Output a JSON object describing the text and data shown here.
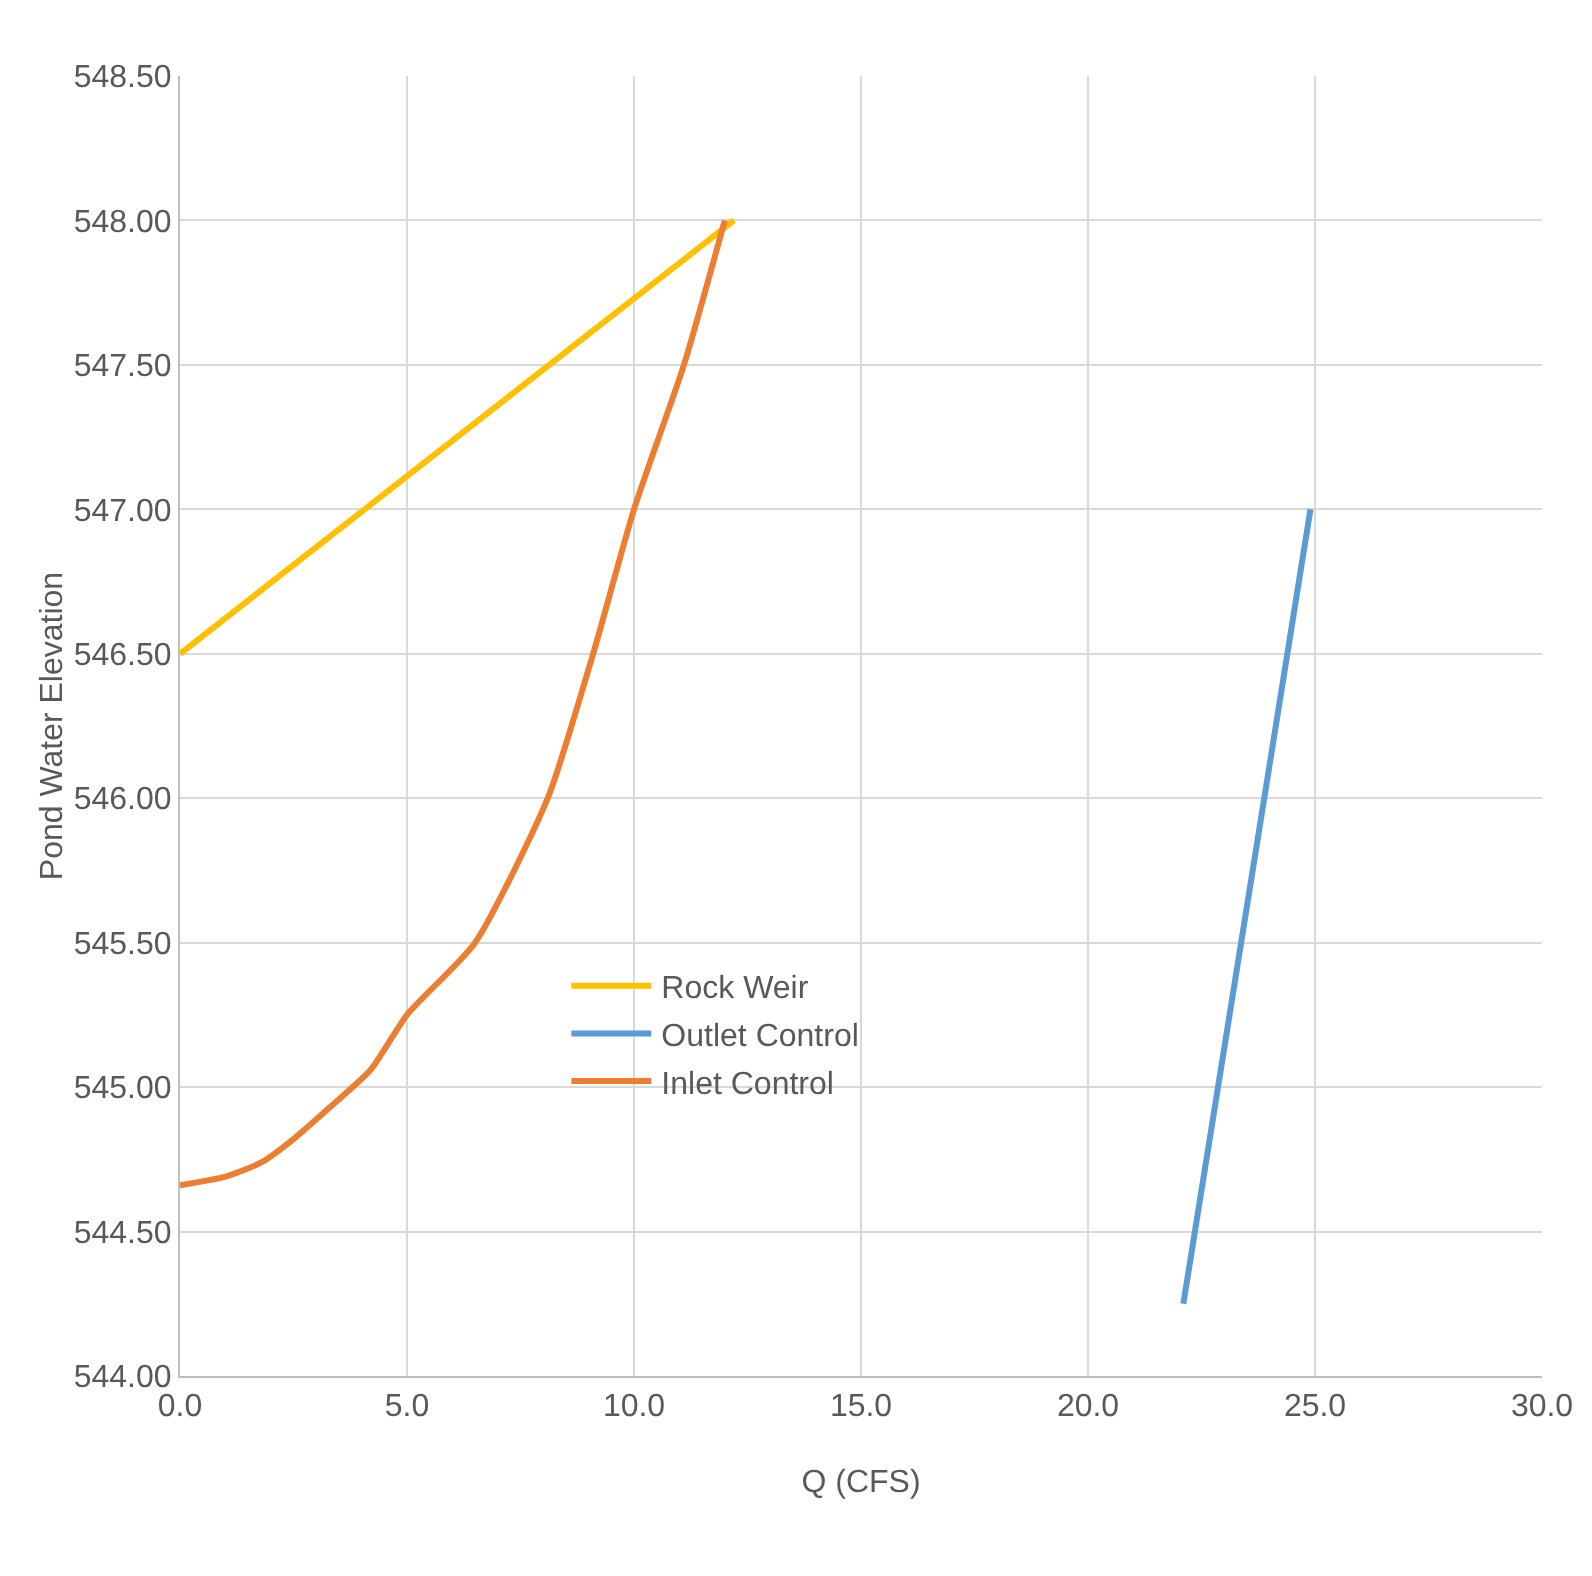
{
  "chart_data": {
    "type": "line",
    "xlabel": "Q (CFS)",
    "ylabel": "Pond Water Elevation",
    "xlim": [
      0,
      30
    ],
    "xticks": [
      {
        "value": 0,
        "label": "0.0"
      },
      {
        "value": 5,
        "label": "5.0"
      },
      {
        "value": 10,
        "label": "10.0"
      },
      {
        "value": 15,
        "label": "15.0"
      },
      {
        "value": 20,
        "label": "20.0"
      },
      {
        "value": 25,
        "label": "25.0"
      },
      {
        "value": 30,
        "label": "30.0"
      }
    ],
    "ylim": [
      544,
      548.5
    ],
    "yticks": [
      {
        "value": 544,
        "label": "544.00"
      },
      {
        "value": 544.5,
        "label": "544.50"
      },
      {
        "value": 545,
        "label": "545.00"
      },
      {
        "value": 545.5,
        "label": "545.50"
      },
      {
        "value": 546,
        "label": "546.00"
      },
      {
        "value": 546.5,
        "label": "546.50"
      },
      {
        "value": 547,
        "label": "547.00"
      },
      {
        "value": 547.5,
        "label": "547.50"
      },
      {
        "value": 548,
        "label": "548.00"
      },
      {
        "value": 548.5,
        "label": "548.50"
      }
    ],
    "grid": true,
    "legend": "bottom left",
    "marker": "none",
    "line_style": "solid",
    "series": [
      {
        "name": "Rock Weir",
        "color": "#ffc000",
        "x": [
          0,
          12.2
        ],
        "values": [
          546.5,
          548.0
        ]
      },
      {
        "name": "Outlet Control",
        "color": "#5b9bd5",
        "x": [
          22.1,
          24.9
        ],
        "values": [
          544.25,
          547.0
        ]
      },
      {
        "name": "Inlet Control",
        "color": "#ed7d31",
        "x": [
          0,
          1,
          1.8,
          2.5,
          3.3,
          4.2,
          5,
          6.5,
          8.1,
          9.1,
          10,
          11.1,
          12
        ],
        "values": [
          544.66,
          544.69,
          544.74,
          544.82,
          544.93,
          545.06,
          545.25,
          545.5,
          546.0,
          546.5,
          547.0,
          547.5,
          548.0
        ]
      }
    ]
  }
}
